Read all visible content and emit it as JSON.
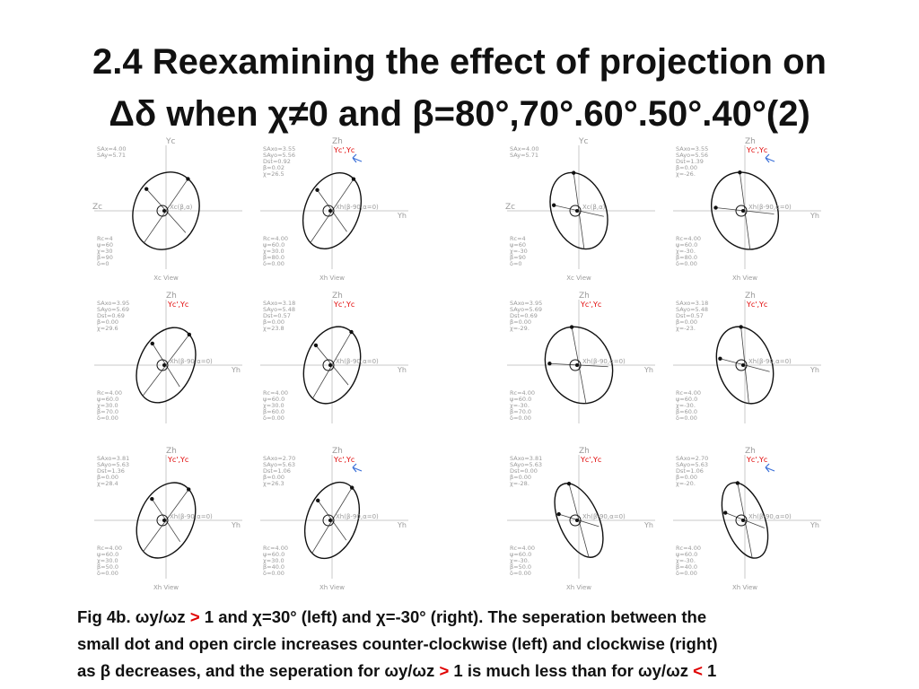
{
  "title": {
    "line1": "2.4 Reexamining the effect of projection on",
    "line2": "Δδ when χ≠0  and β=80°,70°.60°.50°.40°(2)"
  },
  "figure": {
    "panels": [
      {
        "axis_top": "Yc",
        "axis_left": "Zc",
        "axis_bottom": "Xc View",
        "center_label": "Xc(β,α)",
        "stats": [
          "SAx=4.00",
          "SAy=5.71"
        ],
        "params": [
          "Rc=4",
          "ψ=60",
          "χ=30",
          "β=90",
          "δ=0"
        ],
        "tilt": 20,
        "arrow": false
      },
      {
        "axis_top": "Zh",
        "top_red": "Yc',Yc",
        "axis_right": "Yh",
        "axis_bottom": "Xh View",
        "center_label": "Xh(β-90,α=0)",
        "stats": [
          "SAxo=3.55",
          "SAyo=5.56",
          "Dst=0.92",
          "β=0.02",
          "χ=26.5"
        ],
        "params": [
          "Rc=4.00",
          "ψ=60.0",
          "χ=30.0",
          "β=80.0",
          "δ=0.00"
        ],
        "tilt": 22,
        "arrow": true
      },
      {
        "axis_top": "Yc",
        "axis_left": "Zc",
        "axis_bottom": "Xc View",
        "center_label": "Xc(β,α)",
        "stats": [
          "SAx=4.00",
          "SAy=5.71"
        ],
        "params": [
          "Rc=4",
          "ψ=60",
          "χ=-30",
          "β=90",
          "δ=0"
        ],
        "tilt": -20,
        "arrow": false
      },
      {
        "axis_top": "Zh",
        "top_red": "Yc',Yc",
        "axis_right": "Yh",
        "axis_bottom": "Xh View",
        "center_label": "Xh(β-90,α=0)",
        "stats": [
          "SAxo=3.55",
          "SAyo=5.56",
          "Dst=1.39",
          "β=0.00",
          "χ=-26."
        ],
        "params": [
          "Rc=4.00",
          "ψ=60.0",
          "χ=-30.",
          "β=80.0",
          "δ=0.00"
        ],
        "tilt": -22,
        "arrow": true
      },
      {
        "axis_top": "Zh",
        "top_red": "Yc',Yc",
        "axis_right": "Yh",
        "axis_bottom": "",
        "center_label": "Xh(β-90,α=0)",
        "stats": [
          "SAxo=3.95",
          "SAyo=5.69",
          "Dst=0.69",
          "β=0.00",
          "χ=29.6"
        ],
        "params": [
          "Rc=4.00",
          "ψ=60.0",
          "χ=30.0",
          "β=70.0",
          "δ=0.00"
        ],
        "tilt": 25,
        "arrow": false
      },
      {
        "axis_top": "Zh",
        "top_red": "Yc',Yc",
        "axis_right": "Yh",
        "axis_bottom": "",
        "center_label": "Xh(β-90,α=0)",
        "stats": [
          "SAxo=3.18",
          "SAyo=5.48",
          "Dst=0.57",
          "β=0.00",
          "χ=23.8"
        ],
        "params": [
          "Rc=4.00",
          "ψ=60.0",
          "χ=30.0",
          "β=60.0",
          "δ=0.00"
        ],
        "tilt": 18,
        "arrow": false
      },
      {
        "axis_top": "Zh",
        "top_red": "Yc',Yc",
        "axis_right": "Yh",
        "axis_bottom": "",
        "center_label": "Xh(β-90,α=0)",
        "stats": [
          "SAxo=3.95",
          "SAyo=5.69",
          "Dst=0.69",
          "β=0.00",
          "χ=-29."
        ],
        "params": [
          "Rc=4.00",
          "ψ=60.0",
          "χ=-30.",
          "β=70.0",
          "δ=0.00"
        ],
        "tilt": -25,
        "arrow": false
      },
      {
        "axis_top": "Zh",
        "top_red": "Yc',Yc",
        "axis_right": "Yh",
        "axis_bottom": "",
        "center_label": "Xh(β-90,α=0)",
        "stats": [
          "SAxo=3.18",
          "SAyo=5.48",
          "Dst=0.57",
          "β=0.00",
          "χ=-23."
        ],
        "params": [
          "Rc=4.00",
          "ψ=60.0",
          "χ=-30.",
          "β=60.0",
          "δ=0.00"
        ],
        "tilt": -18,
        "arrow": false
      },
      {
        "axis_top": "Zh",
        "top_red": "Yc',Yc",
        "axis_right": "Yh",
        "axis_bottom": "Xh View",
        "center_label": "Xh(β-90,α=0)",
        "stats": [
          "SAxo=3.81",
          "SAyo=5.63",
          "Dst=1.36",
          "β=0.00",
          "χ=28.4"
        ],
        "params": [
          "Rc=4.00",
          "ψ=60.0",
          "χ=30.0",
          "β=50.0",
          "δ=0.00"
        ],
        "tilt": 24,
        "arrow": false
      },
      {
        "axis_top": "Zh",
        "top_red": "Yc',Yc",
        "axis_right": "Yh",
        "axis_bottom": "Xh View",
        "center_label": "Xh(β-90,α=0)",
        "stats": [
          "SAxo=2.70",
          "SAyo=5.63",
          "Dst=1.06",
          "β=0.00",
          "χ=26.3"
        ],
        "params": [
          "Rc=4.00",
          "ψ=60.0",
          "χ=30.0",
          "β=40.0",
          "δ=0.00"
        ],
        "tilt": 20,
        "arrow": true
      },
      {
        "axis_top": "Zh",
        "top_red": "Yc',Yc",
        "axis_right": "Yh",
        "axis_bottom": "Xh View",
        "center_label": "Xh(β-90,α=0)",
        "stats": [
          "SAxo=3.81",
          "SAyo=5.63",
          "Dst=0.00",
          "β=0.00",
          "χ=-28."
        ],
        "params": [
          "Rc=4.00",
          "ψ=60.0",
          "χ=-30.",
          "β=50.0",
          "δ=0.00"
        ],
        "tilt": -24,
        "arrow": false
      },
      {
        "axis_top": "Zh",
        "top_red": "Yc',Yc",
        "axis_right": "Yh",
        "axis_bottom": "Xh View",
        "center_label": "Xh(β-90,α=0)",
        "stats": [
          "SAxo=2.70",
          "SAyo=5.63",
          "Dst=1.06",
          "β=0.00",
          "χ=-20."
        ],
        "params": [
          "Rc=4.00",
          "ψ=60.0",
          "χ=-30.",
          "β=40.0",
          "δ=0.00"
        ],
        "tilt": -20,
        "arrow": true
      }
    ]
  },
  "caption": {
    "line1_a": "Fig 4b. ωy/ωz ",
    "line1_gt": ">",
    "line1_b": " 1 and χ=30° (left) and χ=-30° (right). The seperation between the",
    "line2": "small dot and open circle increases counter-clockwise (left) and clockwise (right)",
    "line3_a": "as β decreases, and  the seperation for ωy/ωz ",
    "line3_gt": ">",
    "line3_b": " 1  is much less than for ωy/ωz ",
    "line3_lt": "<",
    "line3_c": " 1"
  },
  "colors": {
    "accent_red": "#e00000",
    "arrow_blue": "#3a6fd8",
    "figure_gray": "#9a9a9a"
  }
}
